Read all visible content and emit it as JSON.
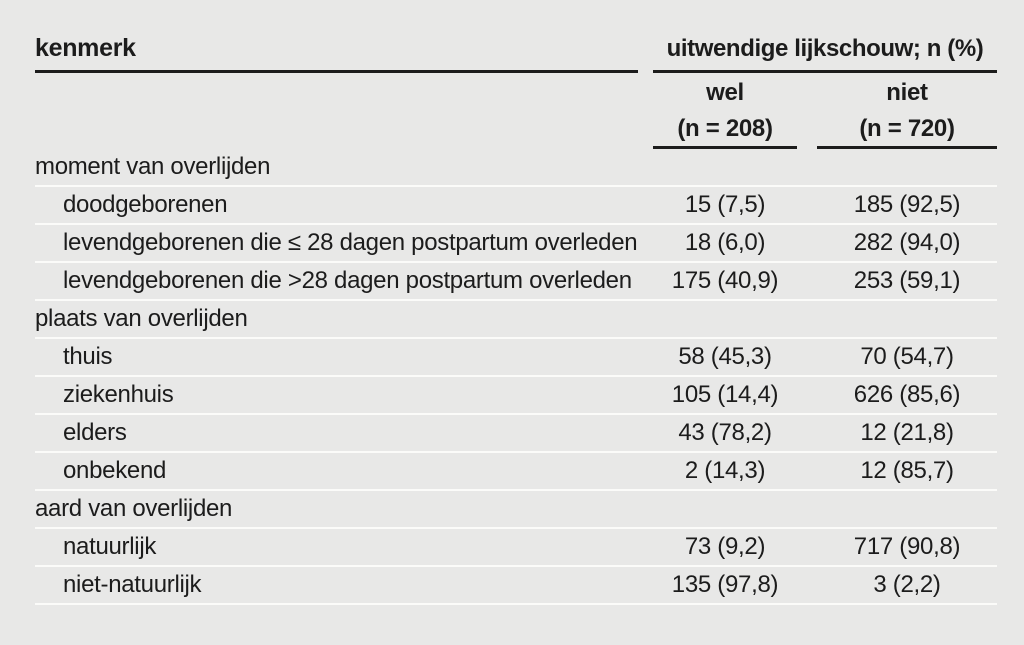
{
  "page": {
    "background_color": "#e8e8e7",
    "separator_white": "#fbfbf9",
    "rule_dark": "#1c1c1c",
    "text_color": "#1c1c1c"
  },
  "chart_data": {
    "type": "table",
    "row_header": "kenmerk",
    "column_group_header": "uitwendige lijkschouw; n (%)",
    "columns": [
      {
        "label": "wel",
        "n": "(n = 208)"
      },
      {
        "label": "niet",
        "n": "(n = 720)"
      }
    ],
    "rows": [
      {
        "kind": "section",
        "label": "moment van overlijden",
        "wel": "",
        "niet": ""
      },
      {
        "kind": "item",
        "label": "doodgeborenen",
        "wel": "15 (7,5)",
        "niet": "185 (92,5)"
      },
      {
        "kind": "item",
        "label": "levendgeborenen die ≤ 28 dagen postpartum overleden",
        "wel": "18 (6,0)",
        "niet": "282 (94,0)"
      },
      {
        "kind": "item",
        "label": "levendgeborenen die >28 dagen postpartum overleden",
        "wel": "175 (40,9)",
        "niet": "253 (59,1)"
      },
      {
        "kind": "section",
        "label": "plaats van overlijden",
        "wel": "",
        "niet": ""
      },
      {
        "kind": "item",
        "label": "thuis",
        "wel": "58 (45,3)",
        "niet": "70 (54,7)"
      },
      {
        "kind": "item",
        "label": "ziekenhuis",
        "wel": "105 (14,4)",
        "niet": "626 (85,6)"
      },
      {
        "kind": "item",
        "label": "elders",
        "wel": "43 (78,2)",
        "niet": "12 (21,8)"
      },
      {
        "kind": "item",
        "label": "onbekend",
        "wel": "2 (14,3)",
        "niet": "12 (85,7)"
      },
      {
        "kind": "section",
        "label": "aard van overlijden",
        "wel": "",
        "niet": ""
      },
      {
        "kind": "item",
        "label": "natuurlijk",
        "wel": "73 (9,2)",
        "niet": "717 (90,8)"
      },
      {
        "kind": "item",
        "label": "niet-natuurlijk",
        "wel": "135 (97,8)",
        "niet": "3 (2,2)"
      }
    ]
  }
}
